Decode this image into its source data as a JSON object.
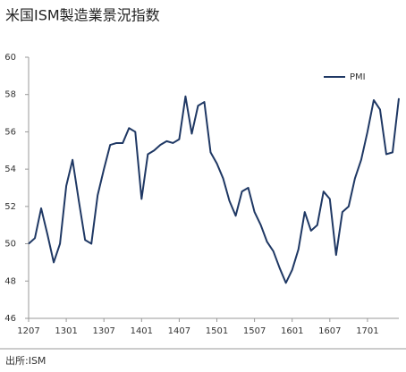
{
  "chart_data": {
    "type": "line",
    "title": "米国ISM製造業景況指数",
    "source": "出所:ISM",
    "categories": [
      "1207",
      null,
      null,
      null,
      null,
      null,
      "1301",
      null,
      null,
      null,
      null,
      null,
      "1307",
      null,
      null,
      null,
      null,
      null,
      "1401",
      null,
      null,
      null,
      null,
      null,
      "1407",
      null,
      null,
      null,
      null,
      null,
      "1501",
      null,
      null,
      null,
      null,
      null,
      "1507",
      null,
      null,
      null,
      null,
      null,
      "1601",
      null,
      null,
      null,
      null,
      null,
      "1607",
      null,
      null,
      null,
      null,
      null,
      "1701",
      null,
      null,
      null,
      null,
      null
    ],
    "series": [
      {
        "name": "PMI",
        "color": "#1f3864",
        "values": [
          50.0,
          50.3,
          51.9,
          50.5,
          49.0,
          50.0,
          53.1,
          54.5,
          52.3,
          50.2,
          50.0,
          52.6,
          54.0,
          55.3,
          55.4,
          55.4,
          56.2,
          56.0,
          52.4,
          54.8,
          55.0,
          55.3,
          55.5,
          55.4,
          55.6,
          57.9,
          55.9,
          57.4,
          57.6,
          54.9,
          54.3,
          53.5,
          52.3,
          51.5,
          52.8,
          53.0,
          51.7,
          51.0,
          50.1,
          49.6,
          48.7,
          47.9,
          48.6,
          49.7,
          51.7,
          50.7,
          51.0,
          52.8,
          52.4,
          49.4,
          51.7,
          52.0,
          53.5,
          54.5,
          56.0,
          57.7,
          57.2,
          54.8,
          54.9,
          57.8
        ]
      }
    ],
    "ylim": [
      46,
      60
    ],
    "yticks": [
      46,
      48,
      50,
      52,
      54,
      56,
      58,
      60
    ],
    "grid": false,
    "legend": "top-right"
  }
}
